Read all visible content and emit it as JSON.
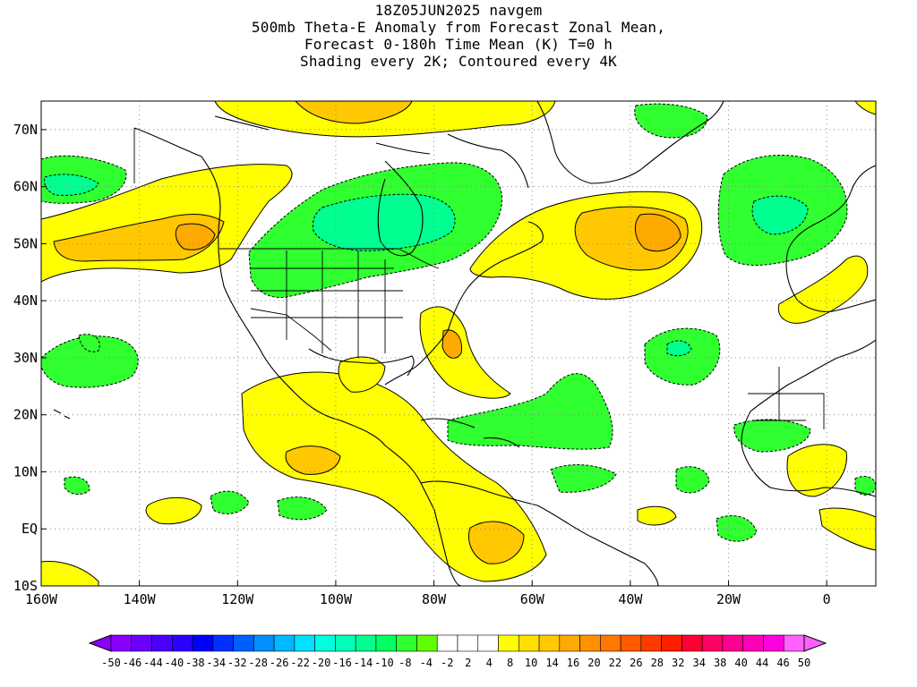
{
  "title": {
    "line1": "18Z05JUN2025 navgem",
    "line2": "500mb Theta-E Anomaly from Forecast Zonal Mean,",
    "line3": "Forecast 0-180h Time Mean (K) T=0 h",
    "line4": "Shading every 2K; Contoured every 4K"
  },
  "axes": {
    "y_ticks": [
      {
        "label": "70N",
        "lat": 70
      },
      {
        "label": "60N",
        "lat": 60
      },
      {
        "label": "50N",
        "lat": 50
      },
      {
        "label": "40N",
        "lat": 40
      },
      {
        "label": "30N",
        "lat": 30
      },
      {
        "label": "20N",
        "lat": 20
      },
      {
        "label": "10N",
        "lat": 10
      },
      {
        "label": "EQ",
        "lat": 0
      },
      {
        "label": "10S",
        "lat": -10
      }
    ],
    "x_ticks": [
      {
        "label": "160W",
        "lon": -160
      },
      {
        "label": "140W",
        "lon": -140
      },
      {
        "label": "120W",
        "lon": -120
      },
      {
        "label": "100W",
        "lon": -100
      },
      {
        "label": "80W",
        "lon": -80
      },
      {
        "label": "60W",
        "lon": -60
      },
      {
        "label": "40W",
        "lon": -40
      },
      {
        "label": "20W",
        "lon": -20
      },
      {
        "label": "0",
        "lon": 0
      }
    ],
    "lon_range": [
      -160,
      10
    ],
    "lat_range": [
      -10,
      75
    ],
    "grid": "dotted"
  },
  "colorbar": {
    "labels": [
      "-50",
      "-46",
      "-44",
      "-40",
      "-38",
      "-34",
      "-32",
      "-28",
      "-26",
      "-22",
      "-20",
      "-16",
      "-14",
      "-10",
      "-8",
      "-4",
      "-2",
      "2",
      "4",
      "8",
      "10",
      "14",
      "16",
      "20",
      "22",
      "26",
      "28",
      "32",
      "34",
      "38",
      "40",
      "44",
      "46",
      "50"
    ],
    "colors": [
      "#8a00ff",
      "#6a00ff",
      "#4a00ff",
      "#2a00ff",
      "#0000ff",
      "#0030ff",
      "#0060ff",
      "#0090ff",
      "#00b8ff",
      "#00e0ff",
      "#00ffe0",
      "#00ffb8",
      "#00ff90",
      "#00ff60",
      "#30ff30",
      "#60ff00",
      "#ffffff",
      "#ffffff",
      "#ffffff",
      "#ffff00",
      "#ffe000",
      "#ffc800",
      "#ffaa00",
      "#ff9000",
      "#ff7800",
      "#ff5a00",
      "#ff3c00",
      "#ff1e00",
      "#ff0030",
      "#ff0064",
      "#ff0090",
      "#ff00b8",
      "#ff00e0",
      "#ff60ff"
    ]
  },
  "map_colors": {
    "ocean": "#ffffff",
    "warm_light": "#ffff00",
    "warm_mid": "#ffe000",
    "warm_strong": "#ffc800",
    "warm_peak": "#ffaa00",
    "cool_light": "#60ff00",
    "cool_mid": "#30ff30",
    "cool_strong": "#00ff90",
    "coast": "#000000"
  }
}
